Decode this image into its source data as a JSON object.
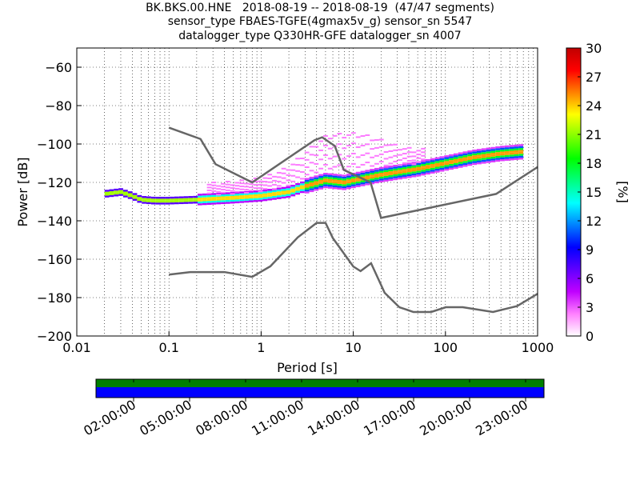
{
  "title": {
    "line1": "BK.BKS.00.HNE   2018-08-19 -- 2018-08-19  (47/47 segments)",
    "line2": "sensor_type FBAES-TGFE(4gmax5v_g) sensor_sn 5547",
    "line3": "datalogger_type Q330HR-GFE datalogger_sn 4007"
  },
  "chart_data": {
    "type": "heatmap",
    "xlabel": "Period [s]",
    "ylabel": "Power [dB]",
    "xscale": "log",
    "xlim": [
      0.01,
      1000
    ],
    "ylim": [
      -200,
      -50
    ],
    "x_ticks": [
      0.01,
      0.1,
      1,
      10,
      100,
      1000
    ],
    "x_tick_labels": [
      "0.01",
      "0.1",
      "1",
      "10",
      "100",
      "1000"
    ],
    "y_ticks": [
      -200,
      -180,
      -160,
      -140,
      -120,
      -100,
      -80,
      -60
    ],
    "y_tick_labels": [
      "−200",
      "−180",
      "−160",
      "−140",
      "−120",
      "−100",
      "−80",
      "−60"
    ],
    "grid": "dotted",
    "colorbar": {
      "label": "[%]",
      "range": [
        0,
        30
      ],
      "ticks": [
        0,
        3,
        6,
        9,
        12,
        15,
        18,
        21,
        24,
        27,
        30
      ],
      "tick_labels": [
        "0",
        "3",
        "6",
        "9",
        "12",
        "15",
        "18",
        "21",
        "24",
        "27",
        "30"
      ],
      "colors": [
        "#ffffff",
        "#ff80ff",
        "#c000ff",
        "#6000ff",
        "#0000ff",
        "#0080ff",
        "#00ffff",
        "#00ff80",
        "#00ff00",
        "#80ff00",
        "#ffff00",
        "#ff8000",
        "#ff0000",
        "#c00000"
      ]
    },
    "noise_models": [
      {
        "name": "high",
        "x": [
          0.1,
          0.22,
          0.32,
          0.8,
          3.8,
          4.6,
          6.3,
          7.9,
          15.4,
          20,
          354.8,
          1000
        ],
        "y": [
          -91.5,
          -97.4,
          -110.5,
          -120,
          -98,
          -96.5,
          -101,
          -113.5,
          -120,
          -138.5,
          -126,
          -112
        ]
      },
      {
        "name": "low",
        "x": [
          0.1,
          0.17,
          0.4,
          0.8,
          1.26,
          2.5,
          4,
          5,
          6,
          10,
          12,
          15.6,
          21.9,
          31.6,
          45,
          70,
          101,
          154,
          328,
          600,
          1000
        ],
        "y": [
          -168,
          -166.7,
          -166.7,
          -169.2,
          -163.7,
          -148.6,
          -141.1,
          -141.1,
          -149,
          -163.8,
          -166.2,
          -162.1,
          -177.5,
          -185,
          -187.5,
          -187.5,
          -185,
          -185,
          -187.5,
          -184.4,
          -178
        ]
      }
    ],
    "median_trend": {
      "x": [
        0.02,
        0.03,
        0.04,
        0.05,
        0.07,
        0.1,
        0.2,
        0.5,
        1,
        2,
        3,
        5,
        8,
        10,
        20,
        50,
        100,
        200,
        400,
        700
      ],
      "y": [
        -126,
        -125,
        -127,
        -129,
        -129.5,
        -129.5,
        -129,
        -128,
        -127,
        -125,
        -122,
        -119,
        -120,
        -119,
        -116,
        -113,
        -110,
        -107,
        -105,
        -104
      ]
    },
    "availability": {
      "time_ticks": [
        "02:00:00",
        "05:00:00",
        "08:00:00",
        "11:00:00",
        "14:00:00",
        "17:00:00",
        "20:00:00",
        "23:00:00"
      ],
      "top_color": "#008000",
      "bottom_color": "#0000ff"
    }
  }
}
